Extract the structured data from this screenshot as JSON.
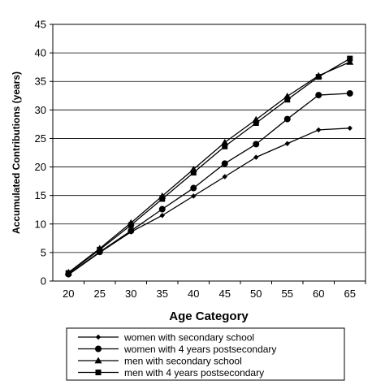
{
  "chart_data": {
    "type": "line",
    "xlabel": "Age Category",
    "ylabel": "Accumulated Contributions (years)",
    "x": [
      20,
      25,
      30,
      35,
      40,
      45,
      50,
      55,
      60,
      65
    ],
    "ylim": [
      0,
      45
    ],
    "yticks": [
      0,
      5,
      10,
      15,
      20,
      25,
      30,
      35,
      40,
      45
    ],
    "grid": "horizontal",
    "legend_position": "bottom",
    "series": [
      {
        "name": "women with secondary school",
        "marker": "diamond",
        "values": [
          1.1,
          5.0,
          8.6,
          11.5,
          14.9,
          18.3,
          21.7,
          24.1,
          26.5,
          26.8
        ]
      },
      {
        "name": "women with 4 years postsecondary",
        "marker": "circle",
        "values": [
          1.2,
          5.1,
          8.8,
          12.6,
          16.3,
          20.6,
          24.0,
          28.4,
          32.6,
          32.9
        ]
      },
      {
        "name": "men with secondary school",
        "marker": "triangle",
        "values": [
          1.5,
          5.7,
          10.2,
          14.9,
          19.6,
          24.3,
          28.3,
          32.4,
          36.0,
          38.4
        ]
      },
      {
        "name": "men with 4 years postsecondary",
        "marker": "square",
        "values": [
          1.4,
          5.5,
          9.8,
          14.4,
          19.0,
          23.6,
          27.7,
          31.8,
          35.8,
          39.0
        ]
      }
    ]
  }
}
